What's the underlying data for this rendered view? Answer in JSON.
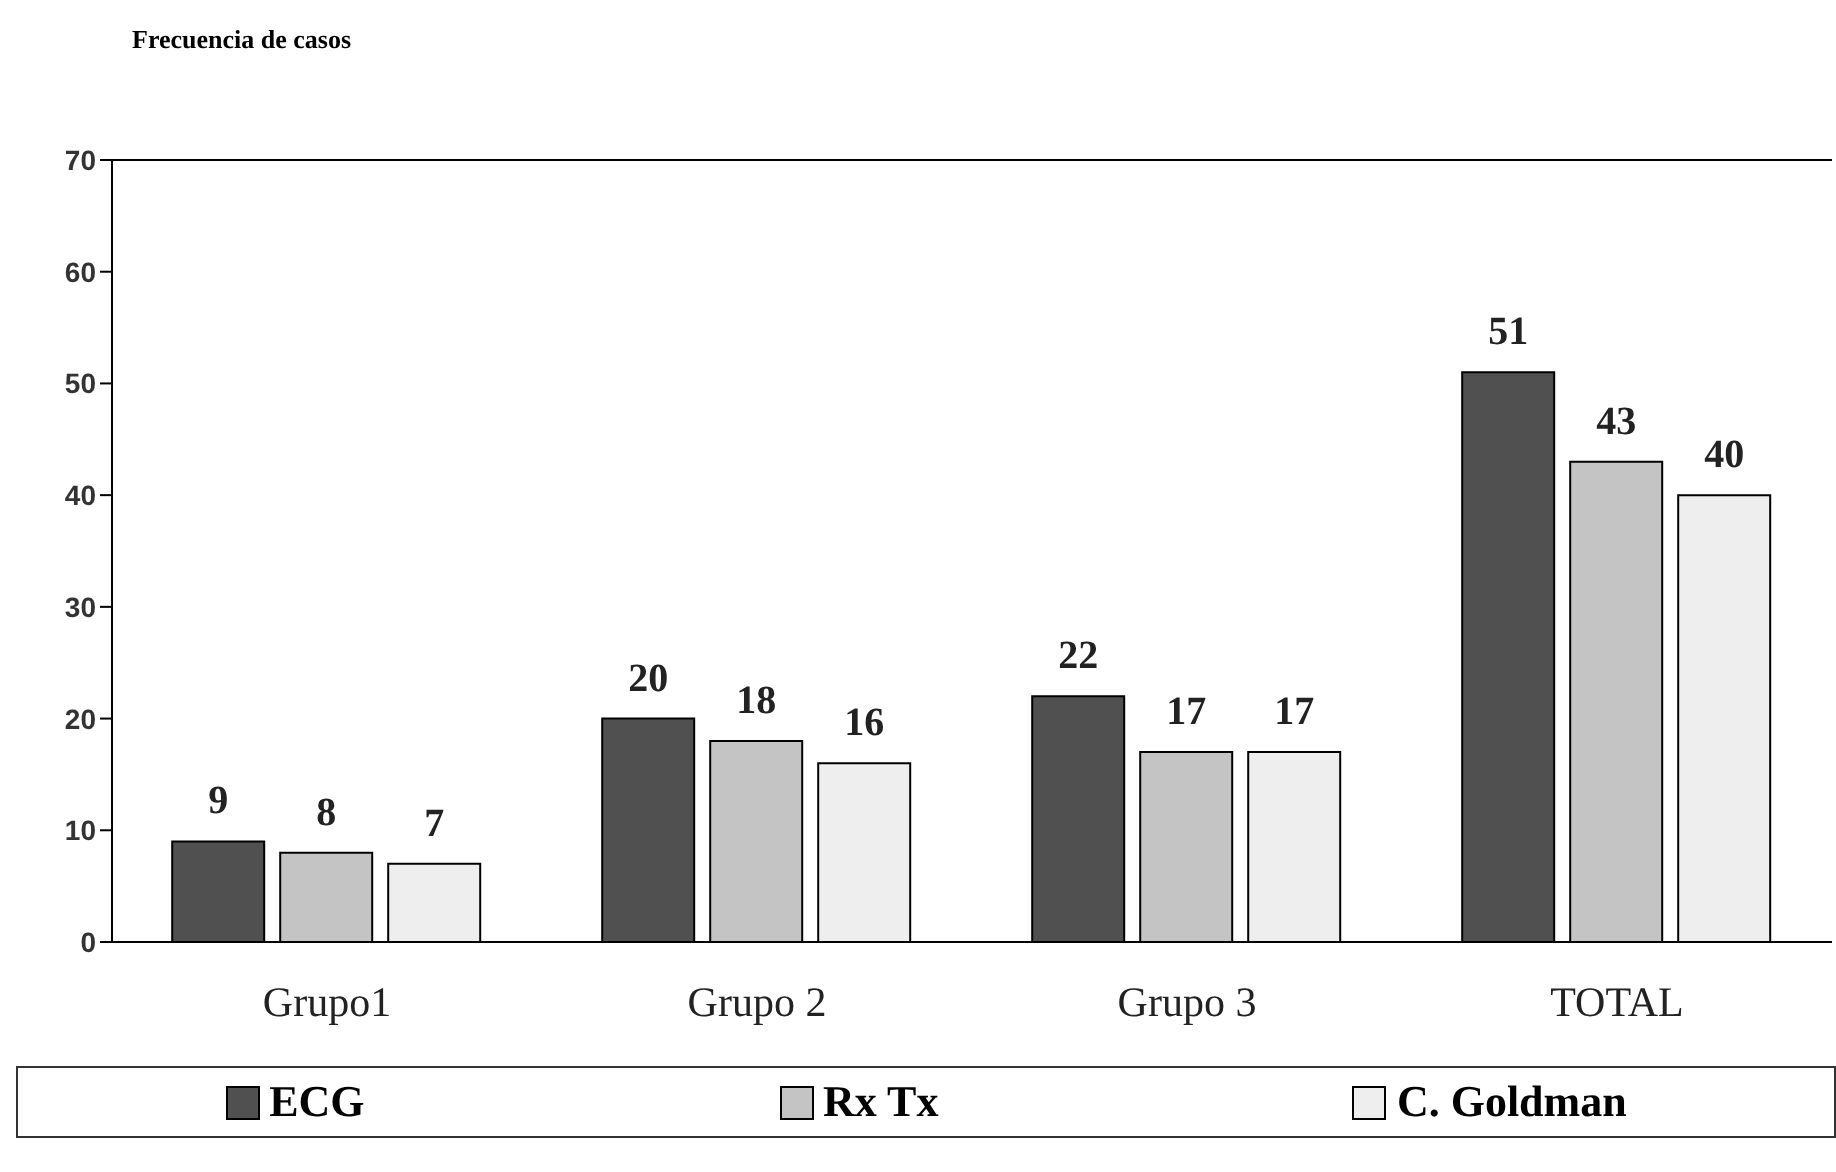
{
  "chart_data": {
    "type": "bar",
    "ylabel": "Frecuencia de casos",
    "categories": [
      "Grupo1",
      "Grupo 2",
      "Grupo 3",
      "TOTAL"
    ],
    "series": [
      {
        "name": "ECG",
        "color": "#505050",
        "values": [
          9,
          20,
          22,
          51
        ]
      },
      {
        "name": "Rx Tx",
        "color": "#c4c4c4",
        "values": [
          8,
          18,
          17,
          43
        ]
      },
      {
        "name": "C. Goldman",
        "color": "#eeeeee",
        "values": [
          7,
          16,
          17,
          40
        ]
      }
    ],
    "ylim": [
      0,
      70
    ],
    "yticks": [
      0,
      10,
      20,
      30,
      40,
      50,
      60,
      70
    ],
    "grid": false,
    "legend": "bottom",
    "data_labels": true
  }
}
